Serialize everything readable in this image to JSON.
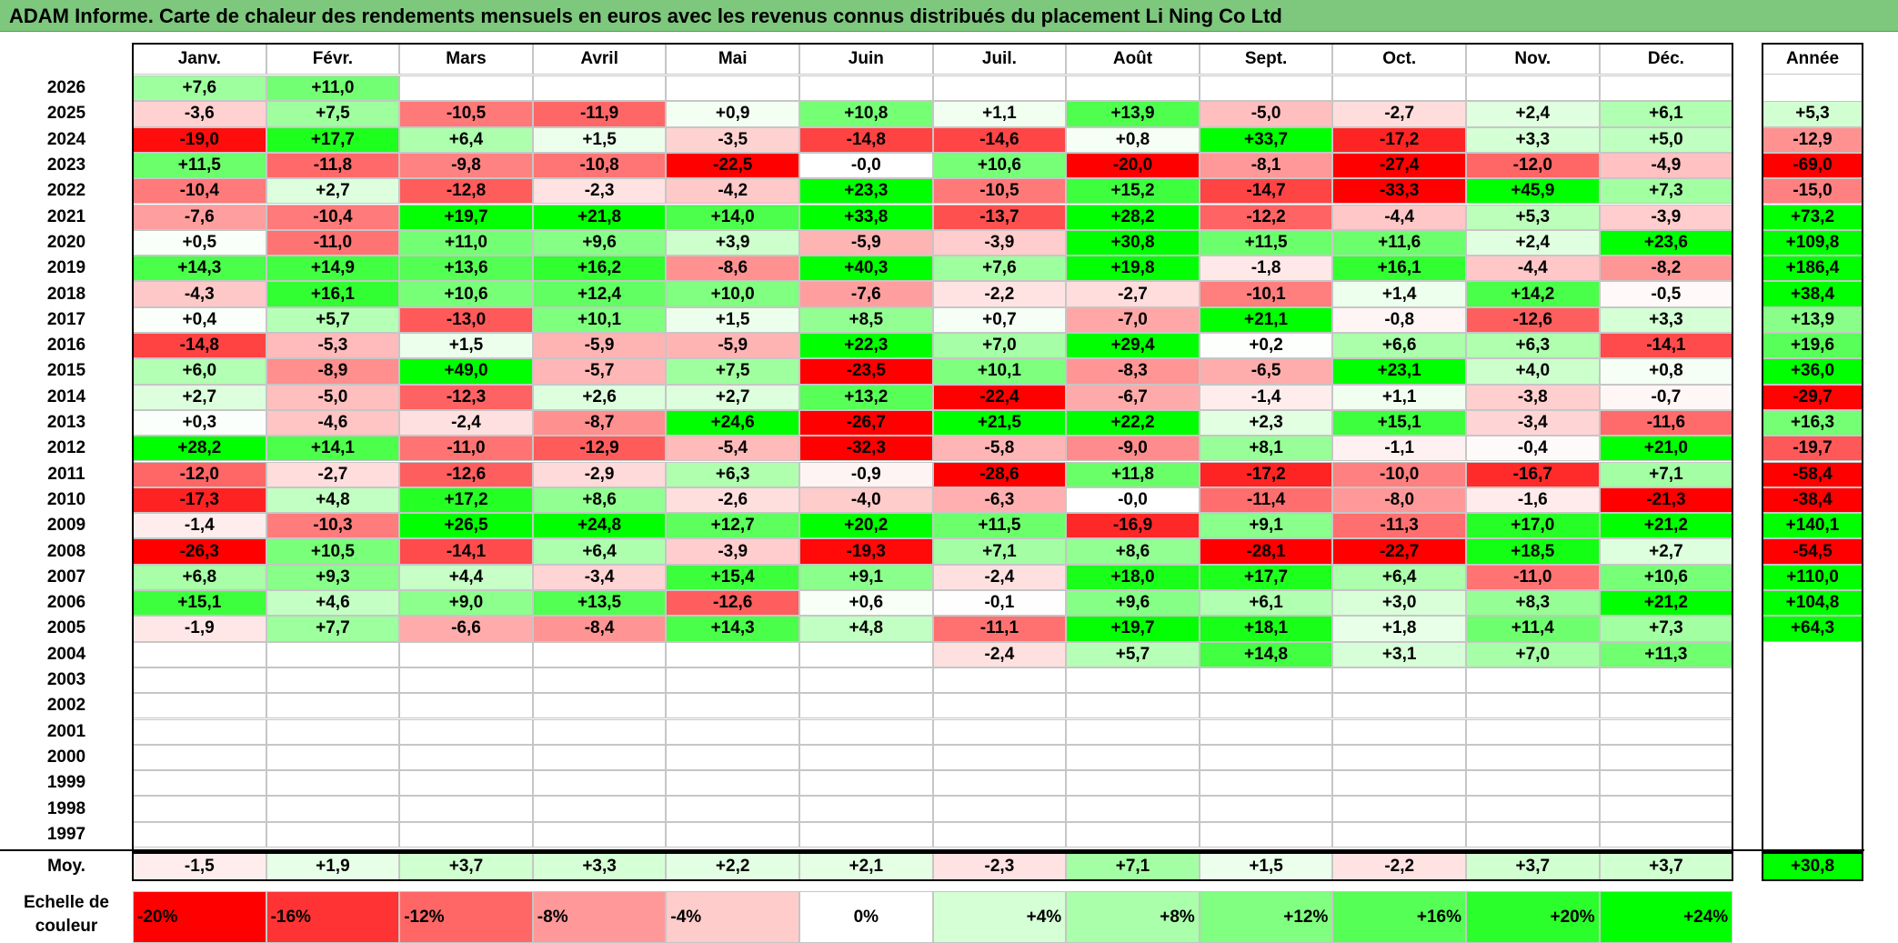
{
  "title": "ADAM Informe. Carte de chaleur des rendements mensuels en euros avec les revenus connus distribués du placement Li Ning Co Ltd",
  "chart_data": {
    "type": "heatmap",
    "months": [
      "Janv.",
      "Févr.",
      "Mars",
      "Avril",
      "Mai",
      "Juin",
      "Juil.",
      "Août",
      "Sept.",
      "Oct.",
      "Nov.",
      "Déc."
    ],
    "year_header": "Année",
    "years": [
      "2026",
      "2025",
      "2024",
      "2023",
      "2022",
      "2021",
      "2020",
      "2019",
      "2018",
      "2017",
      "2016",
      "2015",
      "2014",
      "2013",
      "2012",
      "2011",
      "2010",
      "2009",
      "2008",
      "2007",
      "2006",
      "2005",
      "2004",
      "2003",
      "2002",
      "2001",
      "2000",
      "1999",
      "1998",
      "1997"
    ],
    "values": [
      [
        "+7,6",
        "+11,0",
        "",
        "",
        "",
        "",
        "",
        "",
        "",
        "",
        "",
        ""
      ],
      [
        "-3,6",
        "+7,5",
        "-10,5",
        "-11,9",
        "+0,9",
        "+10,8",
        "+1,1",
        "+13,9",
        "-5,0",
        "-2,7",
        "+2,4",
        "+6,1"
      ],
      [
        "-19,0",
        "+17,7",
        "+6,4",
        "+1,5",
        "-3,5",
        "-14,8",
        "-14,6",
        "+0,8",
        "+33,7",
        "-17,2",
        "+3,3",
        "+5,0"
      ],
      [
        "+11,5",
        "-11,8",
        "-9,8",
        "-10,8",
        "-22,5",
        "-0,0",
        "+10,6",
        "-20,0",
        "-8,1",
        "-27,4",
        "-12,0",
        "-4,9"
      ],
      [
        "-10,4",
        "+2,7",
        "-12,8",
        "-2,3",
        "-4,2",
        "+23,3",
        "-10,5",
        "+15,2",
        "-14,7",
        "-33,3",
        "+45,9",
        "+7,3"
      ],
      [
        "-7,6",
        "-10,4",
        "+19,7",
        "+21,8",
        "+14,0",
        "+33,8",
        "-13,7",
        "+28,2",
        "-12,2",
        "-4,4",
        "+5,3",
        "-3,9"
      ],
      [
        "+0,5",
        "-11,0",
        "+11,0",
        "+9,6",
        "+3,9",
        "-5,9",
        "-3,9",
        "+30,8",
        "+11,5",
        "+11,6",
        "+2,4",
        "+23,6"
      ],
      [
        "+14,3",
        "+14,9",
        "+13,6",
        "+16,2",
        "-8,6",
        "+40,3",
        "+7,6",
        "+19,8",
        "-1,8",
        "+16,1",
        "-4,4",
        "-8,2"
      ],
      [
        "-4,3",
        "+16,1",
        "+10,6",
        "+12,4",
        "+10,0",
        "-7,6",
        "-2,2",
        "-2,7",
        "-10,1",
        "+1,4",
        "+14,2",
        "-0,5"
      ],
      [
        "+0,4",
        "+5,7",
        "-13,0",
        "+10,1",
        "+1,5",
        "+8,5",
        "+0,7",
        "-7,0",
        "+21,1",
        "-0,8",
        "-12,6",
        "+3,3"
      ],
      [
        "-14,8",
        "-5,3",
        "+1,5",
        "-5,9",
        "-5,9",
        "+22,3",
        "+7,0",
        "+29,4",
        "+0,2",
        "+6,6",
        "+6,3",
        "-14,1"
      ],
      [
        "+6,0",
        "-8,9",
        "+49,0",
        "-5,7",
        "+7,5",
        "-23,5",
        "+10,1",
        "-8,3",
        "-6,5",
        "+23,1",
        "+4,0",
        "+0,8"
      ],
      [
        "+2,7",
        "-5,0",
        "-12,3",
        "+2,6",
        "+2,7",
        "+13,2",
        "-22,4",
        "-6,7",
        "-1,4",
        "+1,1",
        "-3,8",
        "-0,7"
      ],
      [
        "+0,3",
        "-4,6",
        "-2,4",
        "-8,7",
        "+24,6",
        "-26,7",
        "+21,5",
        "+22,2",
        "+2,3",
        "+15,1",
        "-3,4",
        "-11,6"
      ],
      [
        "+28,2",
        "+14,1",
        "-11,0",
        "-12,9",
        "-5,4",
        "-32,3",
        "-5,8",
        "-9,0",
        "+8,1",
        "-1,1",
        "-0,4",
        "+21,0"
      ],
      [
        "-12,0",
        "-2,7",
        "-12,6",
        "-2,9",
        "+6,3",
        "-0,9",
        "-28,6",
        "+11,8",
        "-17,2",
        "-10,0",
        "-16,7",
        "+7,1"
      ],
      [
        "-17,3",
        "+4,8",
        "+17,2",
        "+8,6",
        "-2,6",
        "-4,0",
        "-6,3",
        "-0,0",
        "-11,4",
        "-8,0",
        "-1,6",
        "-21,3"
      ],
      [
        "-1,4",
        "-10,3",
        "+26,5",
        "+24,8",
        "+12,7",
        "+20,2",
        "+11,5",
        "-16,9",
        "+9,1",
        "-11,3",
        "+17,0",
        "+21,2"
      ],
      [
        "-26,3",
        "+10,5",
        "-14,1",
        "+6,4",
        "-3,9",
        "-19,3",
        "+7,1",
        "+8,6",
        "-28,1",
        "-22,7",
        "+18,5",
        "+2,7"
      ],
      [
        "+6,8",
        "+9,3",
        "+4,4",
        "-3,4",
        "+15,4",
        "+9,1",
        "-2,4",
        "+18,0",
        "+17,7",
        "+6,4",
        "-11,0",
        "+10,6"
      ],
      [
        "+15,1",
        "+4,6",
        "+9,0",
        "+13,5",
        "-12,6",
        "+0,6",
        "-0,1",
        "+9,6",
        "+6,1",
        "+3,0",
        "+8,3",
        "+21,2"
      ],
      [
        "-1,9",
        "+7,7",
        "-6,6",
        "-8,4",
        "+14,3",
        "+4,8",
        "-11,1",
        "+19,7",
        "+18,1",
        "+1,8",
        "+11,4",
        "+7,3"
      ],
      [
        "",
        "",
        "",
        "",
        "",
        "",
        "-2,4",
        "+5,7",
        "+14,8",
        "+3,1",
        "+7,0",
        "+11,3"
      ],
      [
        "",
        "",
        "",
        "",
        "",
        "",
        "",
        "",
        "",
        "",
        "",
        ""
      ],
      [
        "",
        "",
        "",
        "",
        "",
        "",
        "",
        "",
        "",
        "",
        "",
        ""
      ],
      [
        "",
        "",
        "",
        "",
        "",
        "",
        "",
        "",
        "",
        "",
        "",
        ""
      ],
      [
        "",
        "",
        "",
        "",
        "",
        "",
        "",
        "",
        "",
        "",
        "",
        ""
      ],
      [
        "",
        "",
        "",
        "",
        "",
        "",
        "",
        "",
        "",
        "",
        "",
        ""
      ],
      [
        "",
        "",
        "",
        "",
        "",
        "",
        "",
        "",
        "",
        "",
        "",
        ""
      ],
      [
        "",
        "",
        "",
        "",
        "",
        "",
        "",
        "",
        "",
        "",
        "",
        ""
      ]
    ],
    "annual": [
      "",
      "+5,3",
      "-12,9",
      "-69,0",
      "-15,0",
      "+73,2",
      "+109,8",
      "+186,4",
      "+38,4",
      "+13,9",
      "+19,6",
      "+36,0",
      "-29,7",
      "+16,3",
      "-19,7",
      "-58,4",
      "-38,4",
      "+140,1",
      "-54,5",
      "+110,0",
      "+104,8",
      "+64,3",
      "",
      "",
      "",
      "",
      "",
      "",
      "",
      ""
    ],
    "average_label": "Moy.",
    "averages": [
      "-1,5",
      "+1,9",
      "+3,7",
      "+3,3",
      "+2,2",
      "+2,1",
      "-2,3",
      "+7,1",
      "+1,5",
      "-2,2",
      "+3,7",
      "+3,7"
    ],
    "average_annual": "+30,8",
    "scale_label_line1": "Echelle de",
    "scale_label_line2": "couleur",
    "scale": [
      "-20%",
      "-16%",
      "-12%",
      "-8%",
      "-4%",
      "0%",
      "+4%",
      "+8%",
      "+12%",
      "+16%",
      "+20%",
      "+24%"
    ],
    "scale_values": [
      -20,
      -16,
      -12,
      -8,
      -4,
      0,
      4,
      8,
      12,
      16,
      20,
      24
    ],
    "colors": {
      "negative": "#ff0000",
      "neutral": "#ffffff",
      "positive": "#00ff00"
    }
  }
}
